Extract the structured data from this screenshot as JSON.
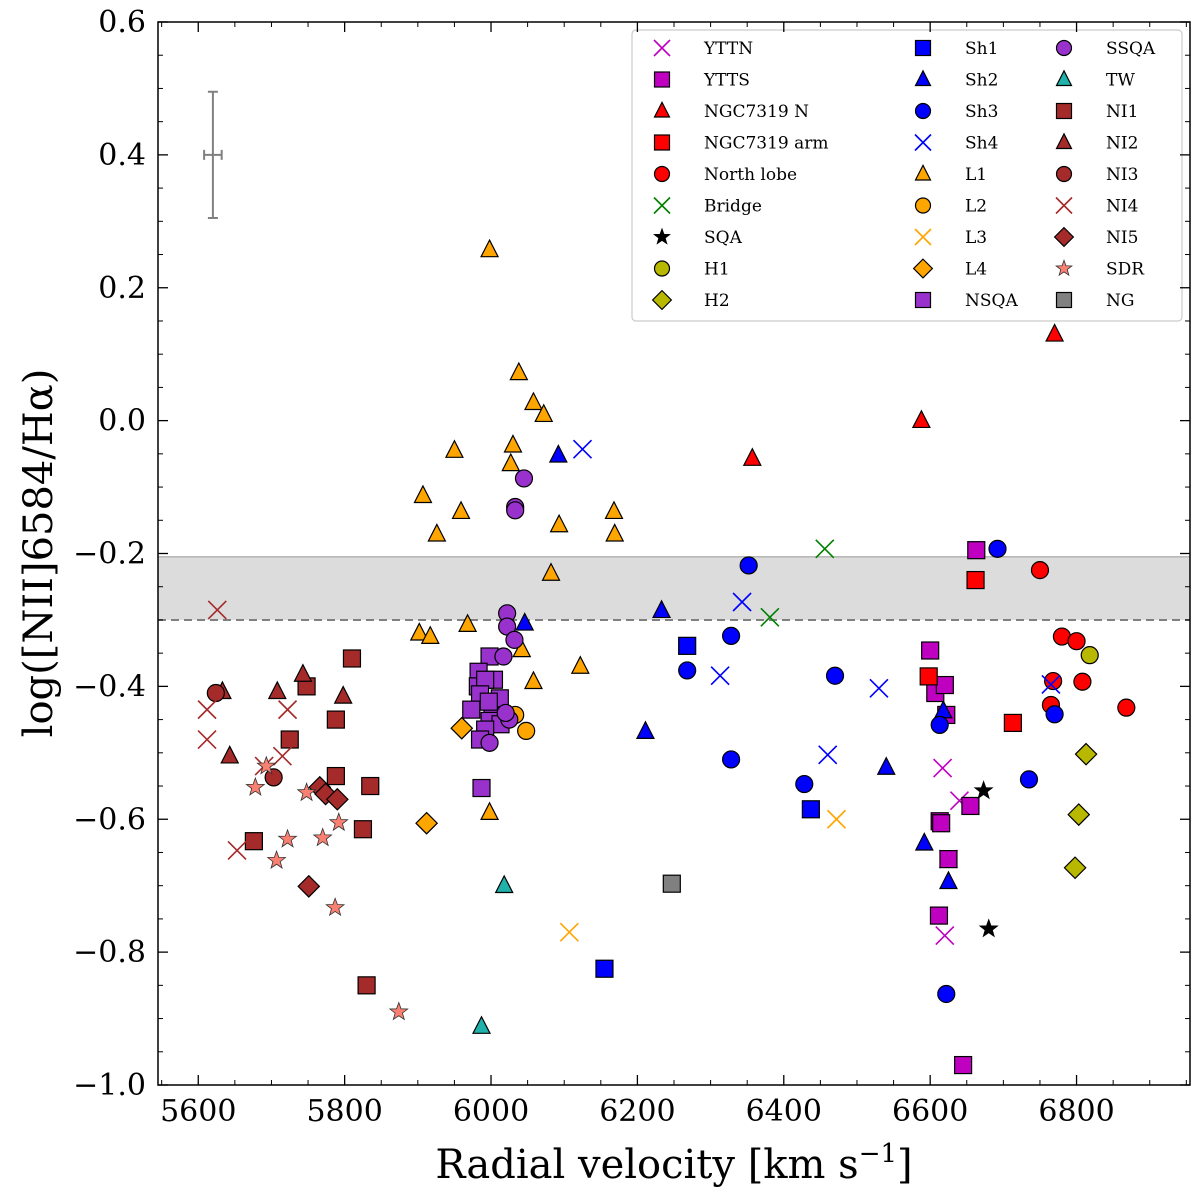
{
  "chart_data": {
    "type": "scatter",
    "title": "",
    "xlabel_main": "Radial velocity [km s",
    "xlabel_sup": "−1",
    "xlabel_close": "]",
    "ylabel": "log([NII]6584/Hα)",
    "xlim": [
      5545,
      6955
    ],
    "ylim": [
      -1.0,
      0.6
    ],
    "x_ticks": [
      5600,
      5800,
      6000,
      6200,
      6400,
      6600,
      6800
    ],
    "x_tick_labels": [
      "5600",
      "5800",
      "6000",
      "6200",
      "6400",
      "6600",
      "6800"
    ],
    "y_ticks": [
      -1.0,
      -0.8,
      -0.6,
      -0.4,
      -0.2,
      0.0,
      0.2,
      0.4,
      0.6
    ],
    "y_tick_labels": [
      "−1.0",
      "−0.8",
      "−0.6",
      "−0.4",
      "−0.2",
      "0.0",
      "0.2",
      "0.4",
      "0.6"
    ],
    "reference_band": {
      "y_low": -0.3,
      "y_high": -0.205,
      "color": "#dcdcdc"
    },
    "reference_line": {
      "y": -0.3,
      "style": "dashed",
      "color": "#808080"
    },
    "error_bar": {
      "x": 5620,
      "y": 0.4,
      "xerr": 12,
      "yerr": 0.095,
      "color": "#808080"
    },
    "legend_position": "top-right",
    "series": [
      {
        "name": "YTTN",
        "marker": "x",
        "color": "#c000c0",
        "points": [
          [
            6617,
            -0.523
          ],
          [
            6640,
            -0.572
          ],
          [
            6625,
            -0.66
          ],
          [
            6620,
            -0.775
          ]
        ]
      },
      {
        "name": "YTTS",
        "marker": "square",
        "color": "#c000c0",
        "points": [
          [
            6663,
            -0.195
          ],
          [
            6600,
            -0.346
          ],
          [
            6607,
            -0.41
          ],
          [
            6620,
            -0.398
          ],
          [
            6622,
            -0.443
          ],
          [
            6613,
            -0.603
          ],
          [
            6615,
            -0.606
          ],
          [
            6655,
            -0.58
          ],
          [
            6625,
            -0.66
          ],
          [
            6612,
            -0.745
          ],
          [
            6645,
            -0.97
          ]
        ]
      },
      {
        "name": "NGC7319 N",
        "marker": "triangle",
        "color": "#ff0000",
        "points": [
          [
            6770,
            0.13
          ],
          [
            6588,
            0.0
          ],
          [
            6357,
            -0.057
          ]
        ]
      },
      {
        "name": "NGC7319 arm",
        "marker": "square",
        "color": "#ff0000",
        "points": [
          [
            6662,
            -0.24
          ],
          [
            6598,
            -0.385
          ],
          [
            6713,
            -0.455
          ]
        ]
      },
      {
        "name": "North lobe",
        "marker": "circle",
        "color": "#ff0000",
        "points": [
          [
            6750,
            -0.225
          ],
          [
            6780,
            -0.325
          ],
          [
            6800,
            -0.332
          ],
          [
            6768,
            -0.392
          ],
          [
            6765,
            -0.428
          ],
          [
            6808,
            -0.393
          ],
          [
            6868,
            -0.432
          ]
        ]
      },
      {
        "name": "Bridge",
        "marker": "x",
        "color": "#008000",
        "points": [
          [
            6456,
            -0.193
          ],
          [
            6381,
            -0.296
          ]
        ]
      },
      {
        "name": "SQA",
        "marker": "star",
        "color": "#000000",
        "points": [
          [
            6673,
            -0.557
          ],
          [
            6680,
            -0.765
          ]
        ]
      },
      {
        "name": "H1",
        "marker": "circle",
        "color": "#b8b800",
        "points": [
          [
            6818,
            -0.353
          ]
        ]
      },
      {
        "name": "H2",
        "marker": "diamond",
        "color": "#b8b800",
        "points": [
          [
            6813,
            -0.502
          ],
          [
            6803,
            -0.593
          ],
          [
            6798,
            -0.673
          ]
        ]
      },
      {
        "name": "Sh1",
        "marker": "square",
        "color": "#0000ff",
        "points": [
          [
            6268,
            -0.339
          ],
          [
            6437,
            -0.585
          ],
          [
            6155,
            -0.825
          ]
        ]
      },
      {
        "name": "Sh2",
        "marker": "triangle",
        "color": "#0000ff",
        "points": [
          [
            6092,
            -0.052
          ],
          [
            6233,
            -0.286
          ],
          [
            6046,
            -0.305
          ],
          [
            6211,
            -0.468
          ],
          [
            6540,
            -0.522
          ],
          [
            6592,
            -0.636
          ],
          [
            6625,
            -0.694
          ],
          [
            6618,
            -0.437
          ]
        ]
      },
      {
        "name": "Sh3",
        "marker": "circle",
        "color": "#0000ff",
        "points": [
          [
            6352,
            -0.218
          ],
          [
            6692,
            -0.193
          ],
          [
            6328,
            -0.324
          ],
          [
            6268,
            -0.376
          ],
          [
            6470,
            -0.384
          ],
          [
            6613,
            -0.458
          ],
          [
            6770,
            -0.442
          ],
          [
            6328,
            -0.51
          ],
          [
            6428,
            -0.547
          ],
          [
            6735,
            -0.54
          ],
          [
            6622,
            -0.863
          ]
        ]
      },
      {
        "name": "Sh4",
        "marker": "x",
        "color": "#0000ff",
        "points": [
          [
            6125,
            -0.043
          ],
          [
            6343,
            -0.273
          ],
          [
            6313,
            -0.384
          ],
          [
            6530,
            -0.403
          ],
          [
            6460,
            -0.503
          ],
          [
            6765,
            -0.397
          ]
        ]
      },
      {
        "name": "L1",
        "marker": "triangle",
        "color": "#ffa500",
        "points": [
          [
            5998,
            0.257
          ],
          [
            6038,
            0.072
          ],
          [
            6058,
            0.027
          ],
          [
            6072,
            0.009
          ],
          [
            6030,
            -0.037
          ],
          [
            5950,
            -0.045
          ],
          [
            6027,
            -0.065
          ],
          [
            5907,
            -0.113
          ],
          [
            5959,
            -0.137
          ],
          [
            5926,
            -0.171
          ],
          [
            6093,
            -0.157
          ],
          [
            6168,
            -0.137
          ],
          [
            6169,
            -0.171
          ],
          [
            6082,
            -0.23
          ],
          [
            5968,
            -0.307
          ],
          [
            5902,
            -0.32
          ],
          [
            5917,
            -0.325
          ],
          [
            6122,
            -0.37
          ],
          [
            6058,
            -0.393
          ],
          [
            5998,
            -0.59
          ],
          [
            6042,
            -0.345
          ]
        ]
      },
      {
        "name": "L2",
        "marker": "circle",
        "color": "#ffa500",
        "points": [
          [
            6033,
            -0.443
          ],
          [
            6048,
            -0.467
          ]
        ]
      },
      {
        "name": "L3",
        "marker": "x",
        "color": "#ffa500",
        "points": [
          [
            6472,
            -0.6
          ],
          [
            6107,
            -0.77
          ]
        ]
      },
      {
        "name": "L4",
        "marker": "diamond",
        "color": "#ffa500",
        "points": [
          [
            5960,
            -0.463
          ],
          [
            5912,
            -0.606
          ]
        ]
      },
      {
        "name": "NSQA",
        "marker": "square",
        "color": "#9932cc",
        "points": [
          [
            5998,
            -0.355
          ],
          [
            5983,
            -0.378
          ],
          [
            6004,
            -0.39
          ],
          [
            5982,
            -0.4
          ],
          [
            5992,
            -0.39
          ],
          [
            5985,
            -0.412
          ],
          [
            6012,
            -0.418
          ],
          [
            5973,
            -0.435
          ],
          [
            6002,
            -0.444
          ],
          [
            5997,
            -0.423
          ],
          [
            5998,
            -0.452
          ],
          [
            6013,
            -0.457
          ],
          [
            5992,
            -0.465
          ],
          [
            5985,
            -0.48
          ],
          [
            5987,
            -0.553
          ]
        ]
      },
      {
        "name": "SSQA",
        "marker": "circle",
        "color": "#9932cc",
        "points": [
          [
            6045,
            -0.087
          ],
          [
            6033,
            -0.13
          ],
          [
            6033,
            -0.135
          ],
          [
            6022,
            -0.29
          ],
          [
            6022,
            -0.31
          ],
          [
            6032,
            -0.33
          ],
          [
            6017,
            -0.355
          ],
          [
            6025,
            -0.45
          ],
          [
            5998,
            -0.485
          ],
          [
            6020,
            -0.44
          ]
        ]
      },
      {
        "name": "TW",
        "marker": "triangle",
        "color": "#20b2aa",
        "points": [
          [
            6018,
            -0.7
          ],
          [
            5987,
            -0.912
          ]
        ]
      },
      {
        "name": "NI1",
        "marker": "square",
        "color": "#a52a2a",
        "points": [
          [
            5810,
            -0.358
          ],
          [
            5748,
            -0.4
          ],
          [
            5788,
            -0.45
          ],
          [
            5725,
            -0.48
          ],
          [
            5788,
            -0.535
          ],
          [
            5835,
            -0.55
          ],
          [
            5676,
            -0.633
          ],
          [
            5825,
            -0.615
          ],
          [
            5830,
            -0.85
          ]
        ]
      },
      {
        "name": "NI2",
        "marker": "triangle",
        "color": "#a52a2a",
        "points": [
          [
            5743,
            -0.382
          ],
          [
            5708,
            -0.408
          ],
          [
            5798,
            -0.415
          ],
          [
            5633,
            -0.408
          ],
          [
            5643,
            -0.505
          ]
        ]
      },
      {
        "name": "NI3",
        "marker": "circle",
        "color": "#a52a2a",
        "points": [
          [
            5624,
            -0.41
          ],
          [
            5703,
            -0.537
          ]
        ]
      },
      {
        "name": "NI4",
        "marker": "x",
        "color": "#a52a2a",
        "points": [
          [
            5626,
            -0.285
          ],
          [
            5612,
            -0.435
          ],
          [
            5722,
            -0.435
          ],
          [
            5612,
            -0.48
          ],
          [
            5715,
            -0.505
          ],
          [
            5690,
            -0.52
          ],
          [
            5653,
            -0.647
          ]
        ]
      },
      {
        "name": "NI5",
        "marker": "diamond",
        "color": "#a52a2a",
        "points": [
          [
            5766,
            -0.552
          ],
          [
            5774,
            -0.562
          ],
          [
            5790,
            -0.57
          ],
          [
            5751,
            -0.701
          ]
        ]
      },
      {
        "name": "SDR",
        "marker": "star",
        "color": "#fa8072",
        "points": [
          [
            5693,
            -0.52
          ],
          [
            5678,
            -0.552
          ],
          [
            5748,
            -0.56
          ],
          [
            5792,
            -0.605
          ],
          [
            5722,
            -0.63
          ],
          [
            5770,
            -0.628
          ],
          [
            5707,
            -0.662
          ],
          [
            5787,
            -0.733
          ],
          [
            5874,
            -0.89
          ]
        ]
      },
      {
        "name": "NG",
        "marker": "square",
        "color": "#808080",
        "points": [
          [
            6247,
            -0.697
          ]
        ]
      }
    ]
  }
}
